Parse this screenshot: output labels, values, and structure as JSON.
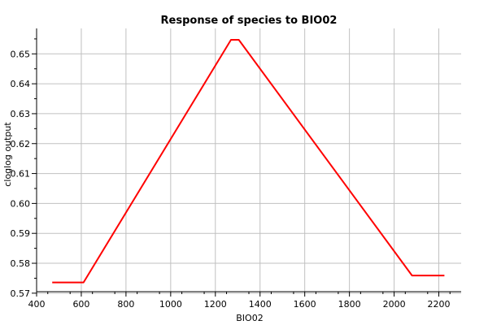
{
  "chart_data": {
    "type": "line",
    "title": "Response of species to BIO02",
    "xlabel": "BIO02",
    "ylabel": "cloglog output",
    "xlim": [
      400,
      2300
    ],
    "ylim": [
      0.5705,
      0.6585
    ],
    "x_ticks": [
      "400",
      "600",
      "800",
      "1000",
      "1200",
      "1400",
      "1600",
      "1800",
      "2000",
      "2200"
    ],
    "y_ticks": [
      "0.57",
      "0.58",
      "0.59",
      "0.60",
      "0.61",
      "0.62",
      "0.63",
      "0.64",
      "0.65"
    ],
    "grid": true,
    "legend": "none",
    "series": [
      {
        "color": "#ff0000",
        "x": [
          470,
          610,
          1270,
          1305,
          2080,
          2225
        ],
        "y": [
          0.5736,
          0.5736,
          0.6547,
          0.6547,
          0.5759,
          0.5759
        ]
      }
    ]
  }
}
